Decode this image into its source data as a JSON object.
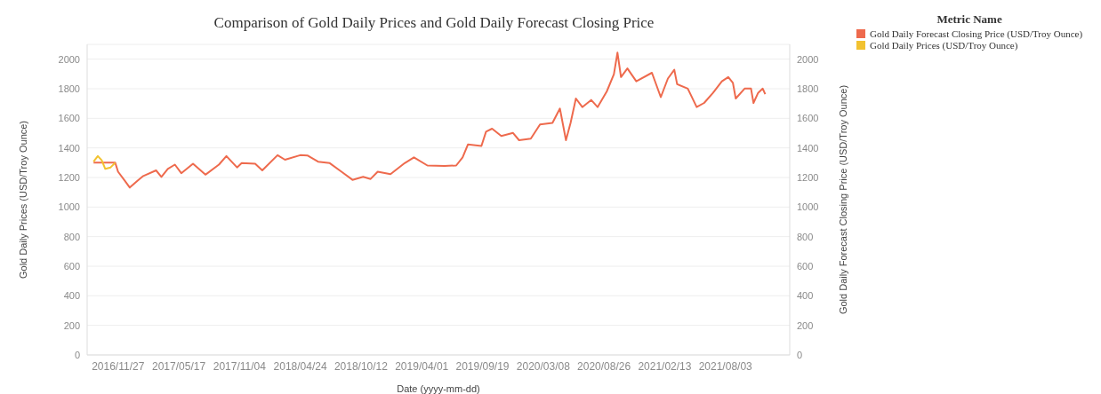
{
  "chart_data": {
    "type": "line",
    "title": "Comparison of Gold Daily Prices and Gold Daily Forecast Closing Price",
    "xlabel": "Date (yyyy-mm-dd)",
    "ylabel": "Gold Daily Prices (USD/Troy Ounce)",
    "y2label": "Gold Daily Forecast Closing Price (USD/Troy Ounce)",
    "legend_title": "Metric Name",
    "legend": "top right",
    "grid": "y",
    "xlim": [
      "2016-09-01",
      "2022-01-31"
    ],
    "xticks": [
      {
        "value": "2016-11-27",
        "label": "2016/11/27"
      },
      {
        "value": "2017-05-17",
        "label": "2017/05/17"
      },
      {
        "value": "2017-11-04",
        "label": "2017/11/04"
      },
      {
        "value": "2018-04-24",
        "label": "2018/04/24"
      },
      {
        "value": "2018-10-12",
        "label": "2018/10/12"
      },
      {
        "value": "2019-04-01",
        "label": "2019/04/01"
      },
      {
        "value": "2019-09-19",
        "label": "2019/09/19"
      },
      {
        "value": "2020-03-08",
        "label": "2020/03/08"
      },
      {
        "value": "2020-08-26",
        "label": "2020/08/26"
      },
      {
        "value": "2021-02-13",
        "label": "2021/02/13"
      },
      {
        "value": "2021-08-03",
        "label": "2021/08/03"
      }
    ],
    "ylim": [
      0,
      2100
    ],
    "yticks": [
      0,
      200,
      400,
      600,
      800,
      1000,
      1200,
      1400,
      1600,
      1800,
      2000
    ],
    "y2lim": [
      0,
      2100
    ],
    "y2ticks": [
      0,
      200,
      400,
      600,
      800,
      1000,
      1200,
      1400,
      1600,
      1800,
      2000
    ],
    "series": [
      {
        "name": "Gold Daily Forecast Closing Price (USD/Troy Ounce)",
        "color": "#ee6a4d",
        "x": [
          "2016-09-19",
          "2016-11-19",
          "2016-11-27",
          "2016-12-15",
          "2016-12-30",
          "2017-01-22",
          "2017-02-06",
          "2017-03-14",
          "2017-03-29",
          "2017-04-16",
          "2017-05-06",
          "2017-05-24",
          "2017-06-26",
          "2017-07-31",
          "2017-09-07",
          "2017-09-28",
          "2017-10-28",
          "2017-11-10",
          "2017-12-18",
          "2018-01-07",
          "2018-02-19",
          "2018-03-12",
          "2018-04-24",
          "2018-05-14",
          "2018-06-13",
          "2018-07-16",
          "2018-08-18",
          "2018-09-18",
          "2018-10-18",
          "2018-11-08",
          "2018-11-28",
          "2019-01-03",
          "2019-02-12",
          "2019-03-10",
          "2019-04-17",
          "2019-06-04",
          "2019-07-07",
          "2019-07-25",
          "2019-08-09",
          "2019-09-16",
          "2019-09-29",
          "2019-10-16",
          "2019-11-11",
          "2019-12-14",
          "2019-12-31",
          "2020-02-02",
          "2020-02-28",
          "2020-04-03",
          "2020-04-24",
          "2020-05-11",
          "2020-05-24",
          "2020-06-08",
          "2020-06-26",
          "2020-07-21",
          "2020-08-08",
          "2020-09-03",
          "2020-09-23",
          "2020-10-03",
          "2020-10-13",
          "2020-10-31",
          "2020-11-25",
          "2021-01-08",
          "2021-02-02",
          "2021-02-22",
          "2021-03-12",
          "2021-03-20",
          "2021-04-19",
          "2021-05-14",
          "2021-06-04",
          "2021-06-29",
          "2021-07-24",
          "2021-08-11",
          "2021-08-24",
          "2021-09-01",
          "2021-09-26",
          "2021-10-14",
          "2021-10-21",
          "2021-11-03",
          "2021-11-16",
          "2021-11-23"
        ],
        "values": [
          1300,
          1300,
          1239,
          1181,
          1132,
          1181,
          1210,
          1248,
          1204,
          1258,
          1287,
          1229,
          1293,
          1219,
          1287,
          1345,
          1268,
          1297,
          1293,
          1248,
          1351,
          1320,
          1351,
          1349,
          1307,
          1297,
          1239,
          1184,
          1204,
          1190,
          1239,
          1223,
          1297,
          1336,
          1281,
          1278,
          1281,
          1336,
          1423,
          1413,
          1510,
          1530,
          1481,
          1501,
          1452,
          1462,
          1559,
          1569,
          1666,
          1452,
          1569,
          1734,
          1676,
          1724,
          1676,
          1782,
          1898,
          2044,
          1879,
          1937,
          1850,
          1908,
          1743,
          1869,
          1928,
          1831,
          1801,
          1676,
          1704,
          1772,
          1850,
          1879,
          1840,
          1734,
          1801,
          1801,
          1704,
          1772,
          1801,
          1763
        ]
      },
      {
        "name": "Gold Daily Prices (USD/Troy Ounce)",
        "color": "#f2c230",
        "x": [
          "2016-09-19",
          "2016-10-01",
          "2016-10-12",
          "2016-10-22",
          "2016-11-06",
          "2016-11-19"
        ],
        "values": [
          1307,
          1345,
          1316,
          1258,
          1268,
          1300
        ]
      }
    ]
  }
}
